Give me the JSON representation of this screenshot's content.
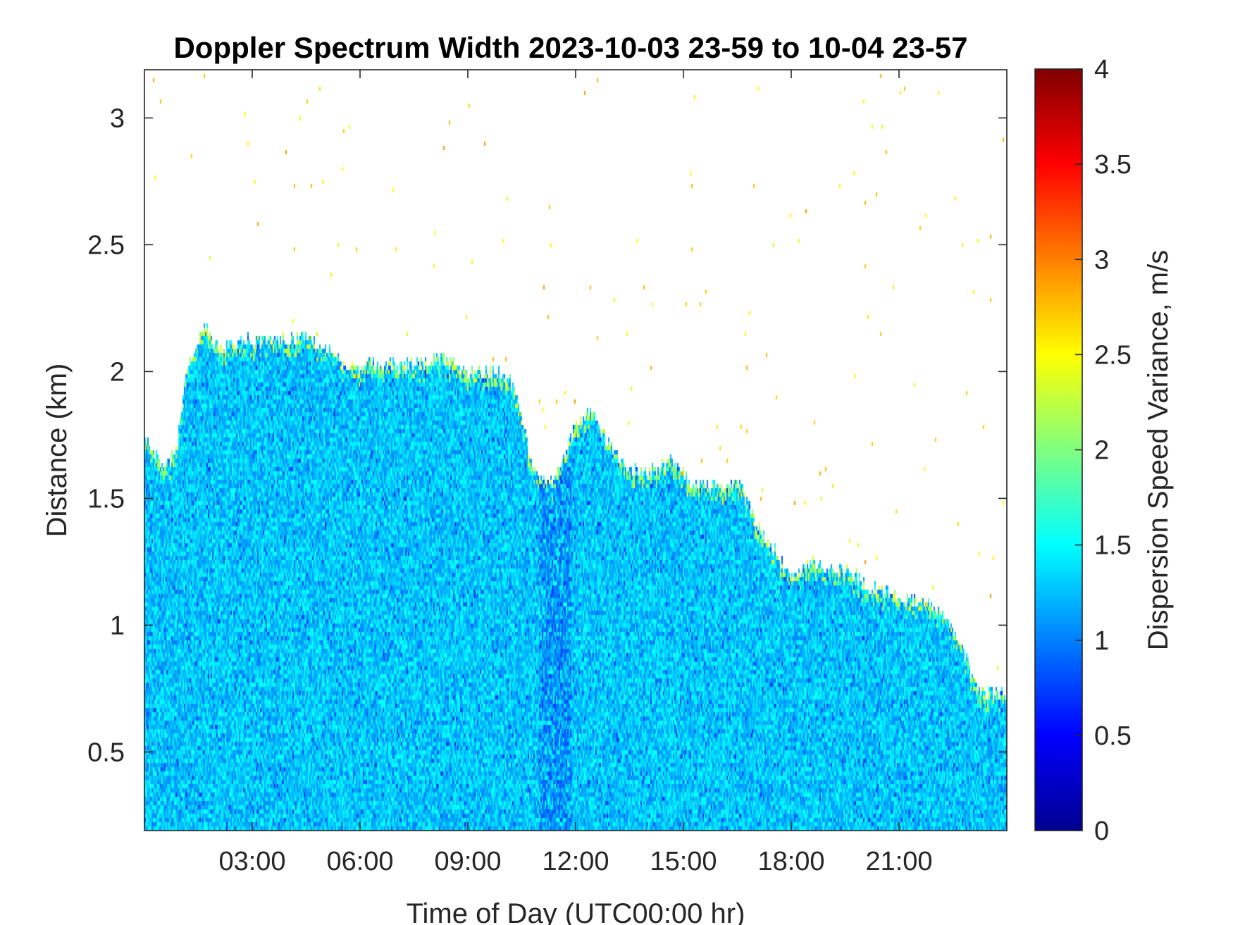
{
  "chart_data": {
    "type": "heatmap",
    "title": "Doppler Spectrum Width 2023-10-03 23-59 to 10-04 23-57",
    "xlabel": "Time of Day (UTC00:00 hr)",
    "ylabel": "Distance (km)",
    "xlim": [
      0,
      24
    ],
    "ylim": [
      0.19,
      3.19
    ],
    "xticks": [
      3,
      6,
      9,
      12,
      15,
      18,
      21
    ],
    "xtick_labels": [
      "03:00",
      "06:00",
      "09:00",
      "12:00",
      "15:00",
      "18:00",
      "21:00"
    ],
    "yticks": [
      0.5,
      1,
      1.5,
      2,
      2.5,
      3
    ],
    "ytick_labels": [
      "0.5",
      "1",
      "1.5",
      "2",
      "2.5",
      "3"
    ],
    "colorbar": {
      "label": "Dispersion Speed Variance, m/s",
      "range": [
        0,
        4
      ],
      "ticks": [
        0,
        0.5,
        1,
        1.5,
        2,
        2.5,
        3,
        3.5,
        4
      ],
      "tick_labels": [
        "0",
        "0.5",
        "1",
        "1.5",
        "2",
        "2.5",
        "3",
        "3.5",
        "4"
      ],
      "colormap": "jet"
    },
    "typical_value": 1.3,
    "signal_top_km": {
      "hour": [
        0,
        0.6,
        0.9,
        1.2,
        1.7,
        2.1,
        2.5,
        3.5,
        4.5,
        5.1,
        5.5,
        6.5,
        7.5,
        8.2,
        9.0,
        9.8,
        10.3,
        10.8,
        11.2,
        11.6,
        12.0,
        12.4,
        12.9,
        13.4,
        14.0,
        14.7,
        15.2,
        15.9,
        16.6,
        17.0,
        17.5,
        18.0,
        18.5,
        19.0,
        19.6,
        20.1,
        20.5,
        21.0,
        21.5,
        22.0,
        22.4,
        22.8,
        23.2,
        23.6,
        24.0
      ],
      "top": [
        1.73,
        1.62,
        1.7,
        2.02,
        2.18,
        2.08,
        2.12,
        2.12,
        2.14,
        2.1,
        2.02,
        2.03,
        2.02,
        2.05,
        2.0,
        2.0,
        1.95,
        1.62,
        1.55,
        1.62,
        1.8,
        1.85,
        1.72,
        1.62,
        1.6,
        1.65,
        1.57,
        1.55,
        1.55,
        1.4,
        1.3,
        1.18,
        1.25,
        1.22,
        1.22,
        1.15,
        1.14,
        1.11,
        1.1,
        1.07,
        1.0,
        0.9,
        0.75,
        0.73,
        0.73
      ]
    },
    "low_variance_band_hours": [
      11.0,
      11.9
    ]
  }
}
